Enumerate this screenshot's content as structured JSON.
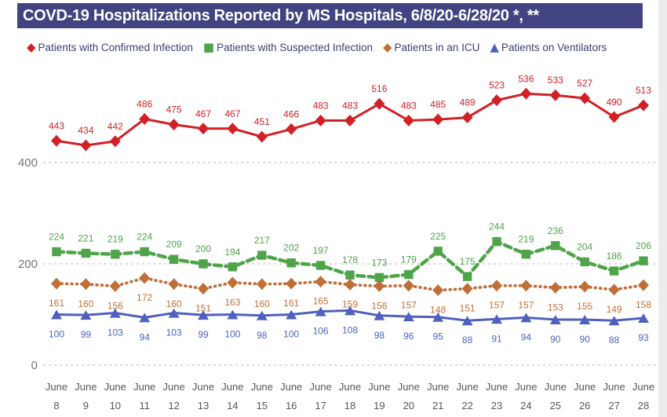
{
  "title": "COVD-19 Hospitalizations Reported by MS Hospitals, 6/8/20-6/28/20 *, **",
  "colors": {
    "title_bar_bg": "#414480",
    "title_text": "#ffffff",
    "legend_text": "#3b3e70",
    "y_tick_text": "#757575",
    "x_tick_text": "#575757",
    "gridline": "#c9c9c9"
  },
  "chart_data": {
    "type": "line",
    "title": "COVD-19 Hospitalizations Reported by MS Hospitals, 6/8/20-6/28/20 *, **",
    "legend_position": "top",
    "grid": "dotted horizontal lines at y ticks",
    "x_axis": {
      "month_label": "June",
      "days": [
        8,
        9,
        10,
        11,
        12,
        13,
        14,
        15,
        16,
        17,
        18,
        19,
        20,
        21,
        22,
        23,
        24,
        25,
        26,
        27,
        28
      ]
    },
    "y_axis": {
      "ticks": [
        0,
        200,
        400
      ],
      "min": 0,
      "max": 560
    },
    "series": [
      {
        "name": "Patients with Confirmed Infection",
        "color": "#d22027",
        "marker": "diamond",
        "line_style": "solid",
        "label_position": "above",
        "values": [
          443,
          434,
          442,
          486,
          475,
          467,
          467,
          451,
          466,
          483,
          483,
          516,
          483,
          485,
          489,
          523,
          536,
          533,
          527,
          490,
          513
        ]
      },
      {
        "name": "Patients with Suspected Infection",
        "color": "#4fa44a",
        "marker": "square",
        "line_style": "dashed",
        "label_position": "above",
        "values": [
          224,
          221,
          219,
          224,
          209,
          200,
          194,
          217,
          202,
          197,
          178,
          173,
          179,
          225,
          175,
          244,
          219,
          236,
          204,
          186,
          206
        ]
      },
      {
        "name": "Patients in an ICU",
        "color": "#c16f39",
        "marker": "diamond",
        "line_style": "dotted",
        "label_position": "below",
        "values": [
          161,
          160,
          156,
          172,
          160,
          151,
          163,
          160,
          161,
          165,
          159,
          156,
          157,
          148,
          151,
          157,
          157,
          153,
          155,
          149,
          158
        ]
      },
      {
        "name": "Patients on Ventilators",
        "color": "#5060be",
        "marker": "triangle",
        "line_style": "solid",
        "label_position": "below",
        "values": [
          100,
          99,
          103,
          94,
          103,
          99,
          100,
          98,
          100,
          106,
          108,
          98,
          96,
          95,
          88,
          91,
          94,
          90,
          90,
          88,
          93
        ]
      }
    ]
  }
}
